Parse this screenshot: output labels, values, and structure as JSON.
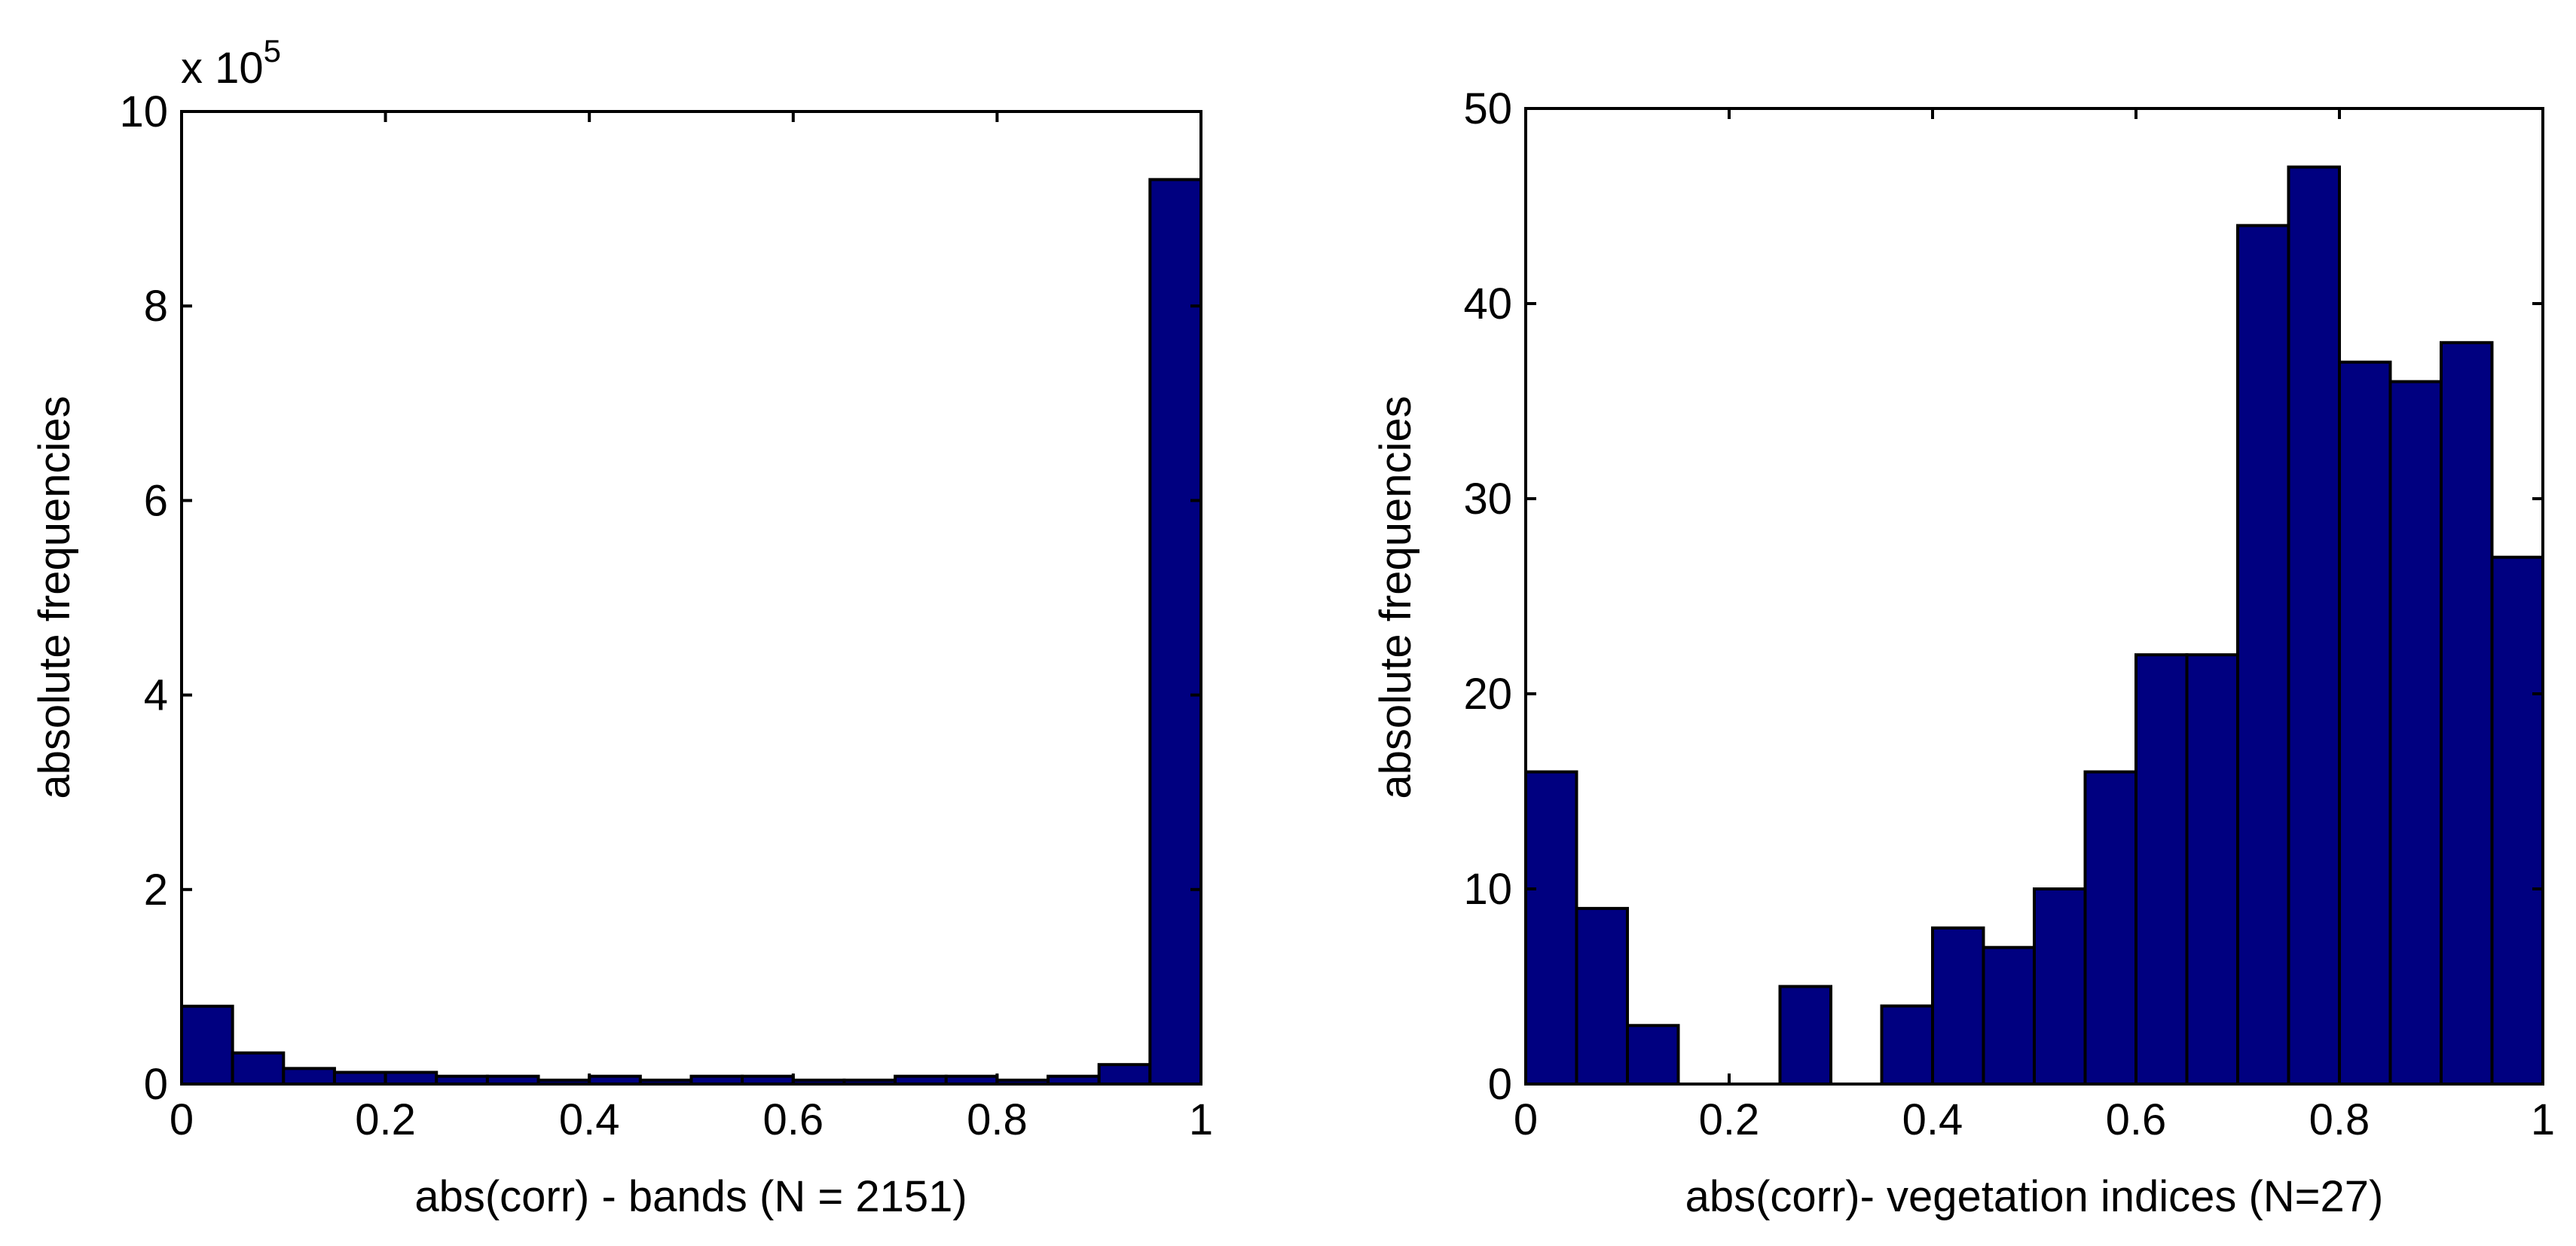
{
  "chart_data": [
    {
      "type": "bar",
      "title": "",
      "xlabel": "abs(corr) - bands (N = 2151)",
      "ylabel": "absolute frequencies",
      "y_multiplier_label": "x 10",
      "y_multiplier_exponent": "5",
      "xlim": [
        0,
        1
      ],
      "ylim": [
        0,
        10
      ],
      "xticks": [
        "0",
        "0.2",
        "0.4",
        "0.6",
        "0.8",
        "1"
      ],
      "yticks": [
        "0",
        "2",
        "4",
        "6",
        "8",
        "10"
      ],
      "bar_color": "#000080",
      "bin_width": 0.05,
      "x": [
        0.025,
        0.075,
        0.125,
        0.175,
        0.225,
        0.275,
        0.325,
        0.375,
        0.425,
        0.475,
        0.525,
        0.575,
        0.625,
        0.675,
        0.725,
        0.775,
        0.825,
        0.875,
        0.925,
        0.975
      ],
      "values": [
        0.8,
        0.32,
        0.16,
        0.12,
        0.12,
        0.08,
        0.08,
        0.04,
        0.08,
        0.04,
        0.08,
        0.08,
        0.04,
        0.04,
        0.08,
        0.08,
        0.04,
        0.08,
        0.2,
        9.3
      ],
      "grid": false
    },
    {
      "type": "bar",
      "title": "",
      "xlabel": "abs(corr)- vegetation indices (N=27)",
      "ylabel": "absolute frequencies",
      "xlim": [
        0,
        1
      ],
      "ylim": [
        0,
        50
      ],
      "xticks": [
        "0",
        "0.2",
        "0.4",
        "0.6",
        "0.8",
        "1"
      ],
      "yticks": [
        "0",
        "10",
        "20",
        "30",
        "40",
        "50"
      ],
      "bar_color": "#000080",
      "bin_width": 0.05,
      "x": [
        0.025,
        0.075,
        0.125,
        0.175,
        0.225,
        0.275,
        0.325,
        0.375,
        0.425,
        0.475,
        0.525,
        0.575,
        0.625,
        0.675,
        0.725,
        0.775,
        0.825,
        0.875,
        0.925,
        0.975
      ],
      "values": [
        16,
        9,
        3,
        0,
        0,
        5,
        0,
        4,
        8,
        7,
        10,
        16,
        22,
        22,
        44,
        47,
        37,
        36,
        38,
        27
      ],
      "grid": false
    }
  ]
}
